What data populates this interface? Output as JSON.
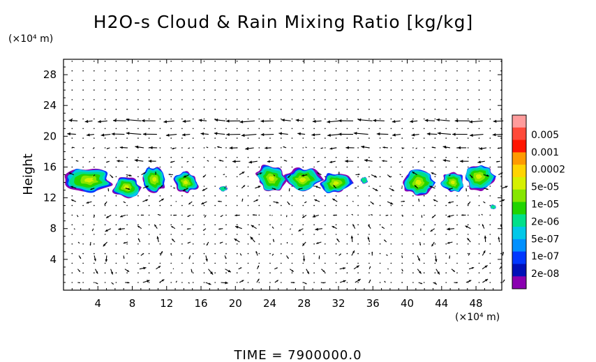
{
  "chart_data": {
    "type": "contour+vector",
    "title": "H2O-s Cloud & Rain Mixing Ratio [kg/kg]",
    "ylabel": "Height",
    "y_unit_label": "(×10⁴ m)",
    "x_unit_label": "(×10⁴ m)",
    "xlim": [
      0,
      51
    ],
    "ylim": [
      0,
      30
    ],
    "x_ticks": [
      4,
      8,
      12,
      16,
      20,
      24,
      28,
      32,
      36,
      40,
      44,
      48
    ],
    "y_ticks": [
      4,
      8,
      12,
      16,
      20,
      24,
      28
    ],
    "colorbar": {
      "labels": [
        "0.005",
        "0.001",
        "0.0002",
        "5e-05",
        "1e-05",
        "2e-06",
        "5e-07",
        "1e-07",
        "2e-08"
      ],
      "colors": [
        "#ff9c9c",
        "#ff4a3a",
        "#ff1500",
        "#ff9a00",
        "#ffd400",
        "#d6f000",
        "#86e600",
        "#22d400",
        "#00e08a",
        "#00c8e8",
        "#0090ff",
        "#0038ff",
        "#0010b8",
        "#8a00b0"
      ]
    },
    "cloud_blobs": [
      {
        "x": 3.0,
        "y": 14.3,
        "w": 5.5,
        "h": 3.2
      },
      {
        "x": 7.3,
        "y": 13.4,
        "w": 3.0,
        "h": 2.6
      },
      {
        "x": 10.6,
        "y": 14.4,
        "w": 2.8,
        "h": 3.2
      },
      {
        "x": 14.2,
        "y": 14.0,
        "w": 2.8,
        "h": 2.6
      },
      {
        "x": 18.6,
        "y": 13.2,
        "w": 0.9,
        "h": 0.7
      },
      {
        "x": 24.2,
        "y": 14.5,
        "w": 3.6,
        "h": 3.4
      },
      {
        "x": 27.8,
        "y": 14.3,
        "w": 4.0,
        "h": 3.4
      },
      {
        "x": 31.7,
        "y": 13.9,
        "w": 3.4,
        "h": 2.8
      },
      {
        "x": 35.0,
        "y": 14.3,
        "w": 0.8,
        "h": 0.8
      },
      {
        "x": 41.3,
        "y": 14.0,
        "w": 3.6,
        "h": 3.2
      },
      {
        "x": 45.3,
        "y": 14.0,
        "w": 2.6,
        "h": 2.8
      },
      {
        "x": 48.3,
        "y": 14.8,
        "w": 3.6,
        "h": 3.4
      },
      {
        "x": 50.0,
        "y": 10.8,
        "w": 0.6,
        "h": 0.6
      }
    ],
    "vector_field": "wind arrows on a regular grid",
    "annotation": "TIME  =  7900000.0"
  }
}
